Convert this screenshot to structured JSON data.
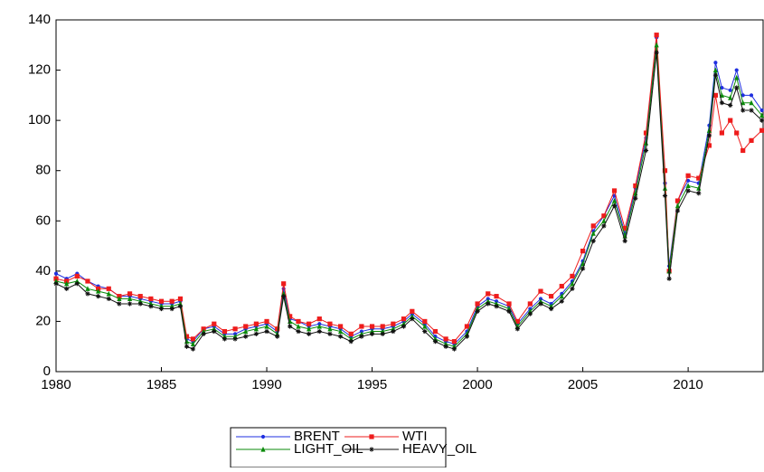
{
  "chart_data": {
    "type": "line",
    "x": [
      1980,
      1980.5,
      1981,
      1981.5,
      1982,
      1982.5,
      1983,
      1983.5,
      1984,
      1984.5,
      1985,
      1985.5,
      1985.9,
      1986.2,
      1986.5,
      1987,
      1987.5,
      1988,
      1988.5,
      1989,
      1989.5,
      1990,
      1990.5,
      1990.8,
      1991.1,
      1991.5,
      1992,
      1992.5,
      1993,
      1993.5,
      1994,
      1994.5,
      1995,
      1995.5,
      1996,
      1996.5,
      1996.9,
      1997.5,
      1998,
      1998.5,
      1998.9,
      1999.5,
      2000,
      2000.5,
      2000.9,
      2001.5,
      2001.9,
      2002.5,
      2003,
      2003.5,
      2004,
      2004.5,
      2005,
      2005.5,
      2006,
      2006.5,
      2007,
      2007.5,
      2008,
      2008.5,
      2008.9,
      2009.1,
      2009.5,
      2010,
      2010.5,
      2011,
      2011.3,
      2011.6,
      2012,
      2012.3,
      2012.6,
      2013,
      2013.5
    ],
    "series": [
      {
        "name": "BRENT",
        "color": "#1f2fe0",
        "marker": "circle",
        "values": [
          39,
          37,
          39,
          36,
          34,
          33,
          30,
          30,
          29,
          28,
          27,
          27,
          28,
          13,
          12,
          17,
          18,
          15,
          15,
          17,
          18,
          19,
          16,
          33,
          21,
          20,
          18,
          19,
          18,
          17,
          14,
          16,
          17,
          17,
          18,
          20,
          23,
          19,
          14,
          12,
          11,
          16,
          26,
          29,
          28,
          26,
          19,
          25,
          29,
          27,
          31,
          36,
          44,
          56,
          62,
          70,
          55,
          73,
          93,
          133,
          75,
          42,
          68,
          76,
          75,
          98,
          123,
          113,
          112,
          120,
          110,
          110,
          104
        ]
      },
      {
        "name": "WTI",
        "color": "#ee1c1c",
        "marker": "square",
        "values": [
          37,
          36,
          38,
          36,
          33,
          33,
          30,
          31,
          30,
          29,
          28,
          28,
          29,
          14,
          13,
          17,
          19,
          16,
          17,
          18,
          19,
          20,
          17,
          35,
          22,
          20,
          19,
          21,
          19,
          18,
          15,
          18,
          18,
          18,
          19,
          21,
          24,
          20,
          16,
          13,
          12,
          18,
          27,
          31,
          30,
          27,
          20,
          27,
          32,
          30,
          34,
          38,
          48,
          58,
          62,
          72,
          57,
          74,
          95,
          134,
          80,
          40,
          68,
          78,
          77,
          90,
          110,
          95,
          100,
          95,
          88,
          92,
          96
        ]
      },
      {
        "name": "LIGHT_OIL",
        "color": "#0a8a0a",
        "marker": "triangle",
        "values": [
          36,
          35,
          36,
          33,
          32,
          31,
          29,
          29,
          28,
          27,
          26,
          26,
          27,
          12,
          11,
          16,
          17,
          14,
          14,
          16,
          17,
          18,
          15,
          31,
          20,
          18,
          17,
          18,
          17,
          16,
          13,
          15,
          16,
          16,
          17,
          19,
          22,
          18,
          13,
          11,
          10,
          15,
          25,
          28,
          27,
          25,
          18,
          24,
          28,
          26,
          30,
          35,
          43,
          55,
          60,
          68,
          54,
          71,
          91,
          130,
          73,
          40,
          66,
          74,
          73,
          96,
          120,
          110,
          109,
          117,
          107,
          107,
          102
        ]
      },
      {
        "name": "HEAVY_OIL",
        "color": "#111111",
        "marker": "star",
        "values": [
          35,
          33,
          35,
          31,
          30,
          29,
          27,
          27,
          27,
          26,
          25,
          25,
          26,
          10,
          9,
          15,
          16,
          13,
          13,
          14,
          15,
          16,
          14,
          30,
          18,
          16,
          15,
          16,
          15,
          14,
          12,
          14,
          15,
          15,
          16,
          18,
          21,
          16,
          12,
          10,
          9,
          14,
          24,
          27,
          26,
          24,
          17,
          23,
          27,
          25,
          28,
          33,
          41,
          52,
          58,
          66,
          52,
          69,
          88,
          127,
          70,
          37,
          64,
          72,
          71,
          94,
          118,
          107,
          106,
          113,
          104,
          104,
          100
        ]
      }
    ],
    "xlim": [
      1980,
      2013.6
    ],
    "xticks": [
      1980,
      1985,
      1990,
      1995,
      2000,
      2005,
      2010
    ],
    "ylim": [
      0,
      140
    ],
    "yticks": [
      0,
      20,
      40,
      60,
      80,
      100,
      120,
      140
    ],
    "legend": "bottom"
  }
}
